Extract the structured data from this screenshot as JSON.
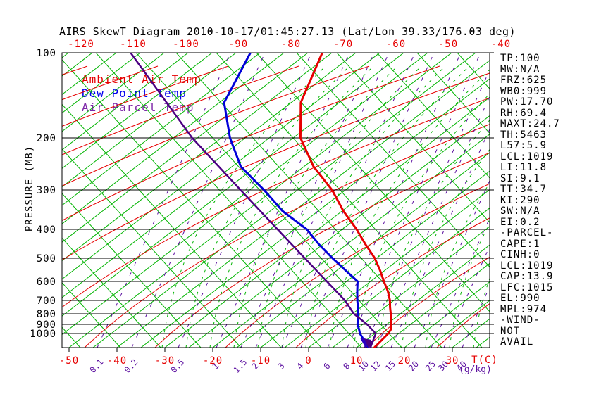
{
  "title": "AIRS SkewT Diagram 2010-10-17/01:45:27.13 (Lat/Lon 39.33/176.03 deg)",
  "legend": {
    "ambient": "Ambient Air Temp",
    "dew": "Dew Point Temp",
    "parcel": "Air Parcel Temp"
  },
  "axes": {
    "pressure_label": "PRESSURE (MB)",
    "pressure_ticks": [
      100,
      200,
      300,
      400,
      500,
      600,
      700,
      800,
      900,
      1000
    ],
    "top_temp_ticks": [
      -120,
      -110,
      -100,
      -90,
      -80,
      -70,
      -60,
      -50,
      -40
    ],
    "bottom_temp_ticks": [
      -50,
      -40,
      -30,
      -20,
      -10,
      0,
      10,
      20,
      30
    ],
    "temp_unit": "T(C)",
    "mixing_ratio_ticks": [
      "0.1",
      "0.2",
      "0.5",
      "1",
      "1.5",
      "2",
      "3",
      "4",
      "6",
      "8",
      "10",
      "12",
      "15",
      "20",
      "25",
      "30",
      "40"
    ],
    "mixing_ratio_unit": "(g/kg)"
  },
  "stats": [
    "TP:100",
    "MW:N/A",
    "FRZ:625",
    "WB0:999",
    "PW:17.70",
    "RH:69.4",
    "MAXT:24.7",
    "TH:5463",
    "L57:5.9",
    "LCL:1019",
    "LI:11.8",
    "SI:9.1",
    "TT:34.7",
    "KI:290",
    "SW:N/A",
    "EI:0.2",
    "-PARCEL-",
    "CAPE:1",
    "CINH:0",
    "LCL:1019",
    "CAP:13.9",
    "LFC:1015",
    "EL:990",
    "MPL:974",
    "-WIND-",
    "NOT",
    "AVAIL"
  ],
  "colors": {
    "background": "#ffffff",
    "isotherm_green": "#00b400",
    "adiabat_red": "#e60000",
    "mixing_purple": "#5c10a0",
    "ambient_red": "#e60000",
    "dew_blue": "#0000d8",
    "parcel_purple": "#4b0082",
    "label_red": "#e60000",
    "text_black": "#000000"
  },
  "chart_data": {
    "type": "line",
    "title": "AIRS SkewT Diagram 2010-10-17/01:45:27.13 (Lat/Lon 39.33/176.03 deg)",
    "xlabel": "T(C)",
    "ylabel": "PRESSURE (MB)",
    "y_scale": "log-pressure",
    "y_range": [
      100,
      1075
    ],
    "x_range_bottom_axis": [
      -50,
      35
    ],
    "x_range_top_axis": [
      -120,
      -40
    ],
    "grid": "skew-t (green isotherms every 5 C, red adiabats, dashed green saturation adiabats, dashed purple mixing-ratio lines)",
    "legend_position": "top-left inside plot",
    "series": [
      {
        "name": "Ambient Air Temp",
        "color": "#e60000",
        "points_p_t": [
          [
            100,
            -77
          ],
          [
            150,
            -68
          ],
          [
            200,
            -58.5
          ],
          [
            250,
            -48
          ],
          [
            300,
            -37.8
          ],
          [
            350,
            -29.7
          ],
          [
            400,
            -22
          ],
          [
            450,
            -16
          ],
          [
            500,
            -10.4
          ],
          [
            550,
            -6
          ],
          [
            600,
            -2.2
          ],
          [
            650,
            1.3
          ],
          [
            700,
            4.2
          ],
          [
            750,
            6.1
          ],
          [
            800,
            8
          ],
          [
            850,
            9.6
          ],
          [
            900,
            10.9
          ],
          [
            950,
            12.2
          ],
          [
            1000,
            12.8
          ],
          [
            1075,
            13.7
          ]
        ]
      },
      {
        "name": "Dew Point Temp",
        "color": "#0000d8",
        "points_p_t": [
          [
            100,
            -92
          ],
          [
            150,
            -84
          ],
          [
            200,
            -73.2
          ],
          [
            250,
            -63.2
          ],
          [
            300,
            -52
          ],
          [
            350,
            -42.4
          ],
          [
            400,
            -32.4
          ],
          [
            450,
            -25.7
          ],
          [
            500,
            -19.2
          ],
          [
            550,
            -13.2
          ],
          [
            600,
            -7.7
          ],
          [
            650,
            -5.1
          ],
          [
            700,
            -2.6
          ],
          [
            750,
            -0.6
          ],
          [
            800,
            1.1
          ],
          [
            850,
            2.6
          ],
          [
            900,
            3.9
          ],
          [
            950,
            5.5
          ],
          [
            1000,
            6.9
          ],
          [
            1075,
            12.5
          ]
        ]
      },
      {
        "name": "Air Parcel Temp",
        "color": "#4b0082",
        "points_p_t": [
          [
            100,
            -117
          ],
          [
            200,
            -81.1
          ],
          [
            300,
            -56.9
          ],
          [
            400,
            -38.5
          ],
          [
            500,
            -25
          ],
          [
            600,
            -14.1
          ],
          [
            700,
            -5.2
          ],
          [
            800,
            0.3
          ],
          [
            900,
            5.9
          ],
          [
            1000,
            10.2
          ],
          [
            1075,
            12.9
          ]
        ]
      }
    ]
  }
}
